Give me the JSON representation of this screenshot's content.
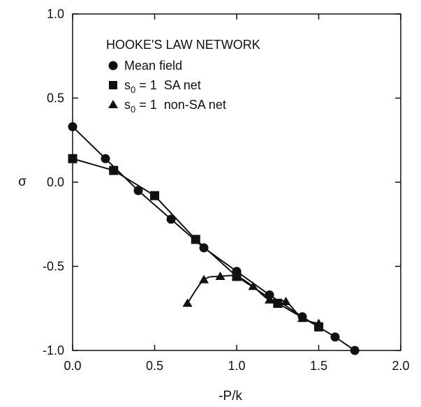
{
  "chart_data": {
    "type": "line",
    "title": "",
    "xlabel": "-P/k",
    "ylabel": "σ",
    "xlim": [
      0.0,
      2.0
    ],
    "ylim": [
      -1.0,
      1.0
    ],
    "xticks": [
      "0.0",
      "0.5",
      "1.0",
      "1.5",
      "2.0"
    ],
    "yticks": [
      "1.0",
      "0.5",
      "0.0",
      "-0.5",
      "-1.0"
    ],
    "grid": false,
    "legend_title": "HOOKE'S LAW NETWORK",
    "legend_position": "top-left",
    "series": [
      {
        "name": "Mean field",
        "marker": "circle",
        "x": [
          0.0,
          0.2,
          0.4,
          0.6,
          0.8,
          1.0,
          1.2,
          1.4,
          1.6,
          1.72
        ],
        "y": [
          0.33,
          0.14,
          -0.05,
          -0.22,
          -0.39,
          -0.53,
          -0.67,
          -0.8,
          -0.92,
          -1.0
        ]
      },
      {
        "name_parts": [
          "s",
          "0",
          " = 1  SA net"
        ],
        "marker": "square",
        "x": [
          0.0,
          0.25,
          0.5,
          0.75,
          1.0,
          1.25,
          1.5
        ],
        "y": [
          0.14,
          0.07,
          -0.08,
          -0.34,
          -0.56,
          -0.72,
          -0.86
        ]
      },
      {
        "name_parts": [
          "s",
          "0",
          " = 1  non-SA net"
        ],
        "marker": "triangle",
        "x": [
          0.7,
          0.8,
          0.9,
          1.0,
          1.1,
          1.2,
          1.3,
          1.4,
          1.5
        ],
        "y": [
          -0.72,
          -0.58,
          -0.56,
          -0.56,
          -0.62,
          -0.7,
          -0.71,
          -0.81,
          -0.84
        ]
      }
    ]
  }
}
